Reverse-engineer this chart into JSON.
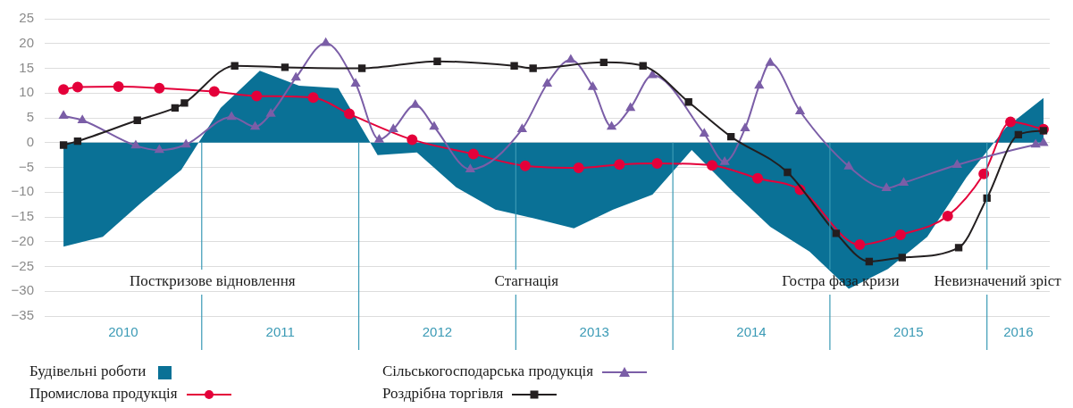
{
  "chart_data": {
    "type": "line",
    "xlim": [
      2010,
      2016.4
    ],
    "xticks": [
      {
        "value": 2010.5,
        "label": "2010"
      },
      {
        "value": 2011.5,
        "label": "2011"
      },
      {
        "value": 2012.5,
        "label": "2012"
      },
      {
        "value": 2013.5,
        "label": "2013"
      },
      {
        "value": 2014.5,
        "label": "2014"
      },
      {
        "value": 2015.5,
        "label": "2015"
      },
      {
        "value": 2016.2,
        "label": "2016"
      }
    ],
    "ylim": [
      -35,
      25
    ],
    "yticks": [
      -35,
      -30,
      -25,
      -20,
      -15,
      -10,
      -5,
      0,
      5,
      10,
      15,
      20,
      25
    ],
    "grid": "y",
    "legend": "bottom",
    "ref_lines": [
      {
        "axis": "x",
        "value": 2011,
        "label": "Посткризове відновлення",
        "color": "#3a9ab5"
      },
      {
        "axis": "x",
        "value": 2012,
        "label": null,
        "color": "#3a9ab5"
      },
      {
        "axis": "x",
        "value": 2013,
        "label": "Стагнація",
        "color": "#3a9ab5"
      },
      {
        "axis": "x",
        "value": 2014,
        "label": null,
        "color": "#3a9ab5"
      },
      {
        "axis": "x",
        "value": 2015,
        "label": "Гостра фаза кризи",
        "color": "#3a9ab5"
      },
      {
        "axis": "x",
        "value": 2016,
        "label": "Невизначений зріст",
        "color": "#3a9ab5"
      }
    ],
    "series": [
      {
        "name": "Будівельні роботи",
        "type": "area",
        "color": "#0a7196",
        "marker": "none",
        "x": [
          2010.12,
          2010.37,
          2010.62,
          2010.87,
          2011.12,
          2011.37,
          2011.62,
          2011.87,
          2012.12,
          2012.37,
          2012.62,
          2012.87,
          2013.12,
          2013.37,
          2013.62,
          2013.87,
          2014.12,
          2014.37,
          2014.62,
          2014.87,
          2015.12,
          2015.37,
          2015.62,
          2015.87,
          2016.12,
          2016.36
        ],
        "values": [
          -21,
          -19,
          -12,
          -5.5,
          7,
          14.5,
          11.5,
          11,
          -2.5,
          -2,
          -9,
          -13.5,
          -15.3,
          -17.3,
          -13.5,
          -10.5,
          -1.5,
          -9.5,
          -17,
          -22,
          -29.5,
          -25.5,
          -19,
          -7,
          3,
          9
        ]
      },
      {
        "name": "Промислова продукція",
        "color": "#e4003a",
        "marker": "circle",
        "x": [
          2010.12,
          2010.21,
          2010.47,
          2010.73,
          2011.08,
          2011.35,
          2011.71,
          2011.94,
          2012.34,
          2012.73,
          2013.06,
          2013.4,
          2013.66,
          2013.9,
          2014.25,
          2014.54,
          2014.81,
          2015.19,
          2015.45,
          2015.75,
          2015.98,
          2016.15,
          2016.36
        ],
        "values": [
          10.7,
          11.2,
          11.3,
          11,
          10.3,
          9.4,
          9.1,
          5.8,
          0.6,
          -2.3,
          -4.7,
          -5.1,
          -4.4,
          -4.2,
          -4.6,
          -7.2,
          -9.5,
          -20.6,
          -18.6,
          -14.8,
          -6.3,
          4.2,
          2.7
        ]
      },
      {
        "name": "Сільськогосподарська продукція",
        "color": "#7b5ea7",
        "marker": "triangle",
        "x": [
          2010.12,
          2010.24,
          2010.58,
          2010.73,
          2010.9,
          2011.19,
          2011.34,
          2011.44,
          2011.6,
          2011.79,
          2011.98,
          2012.13,
          2012.22,
          2012.36,
          2012.48,
          2012.71,
          2013.04,
          2013.2,
          2013.35,
          2013.49,
          2013.61,
          2013.73,
          2013.87,
          2014.2,
          2014.33,
          2014.46,
          2014.55,
          2014.62,
          2014.81,
          2015.12,
          2015.36,
          2015.47,
          2015.81,
          2016.31,
          2016.36
        ],
        "values": [
          5.4,
          4.5,
          -0.6,
          -1.5,
          -0.4,
          5.2,
          3.2,
          5.8,
          13.1,
          20.1,
          11.9,
          0.6,
          2.7,
          7.6,
          3.2,
          -5.4,
          2.7,
          11.9,
          16.7,
          11.2,
          3.2,
          7,
          13.6,
          1.8,
          -3.9,
          2.9,
          11.5,
          16.1,
          6.3,
          -4.8,
          -9.2,
          -8.1,
          -4.5,
          -0.4,
          -0.1
        ]
      },
      {
        "name": "Роздрібна торгівля",
        "color": "#231f20",
        "marker": "square",
        "x": [
          2010.12,
          2010.21,
          2010.59,
          2010.83,
          2010.89,
          2011.21,
          2011.53,
          2012.02,
          2012.5,
          2012.99,
          2013.11,
          2013.56,
          2013.81,
          2014.1,
          2014.37,
          2014.73,
          2015.04,
          2015.25,
          2015.46,
          2015.82,
          2016,
          2016.2,
          2016.36
        ],
        "values": [
          -0.5,
          0.3,
          4.5,
          7,
          8,
          15.5,
          15.2,
          15,
          16.4,
          15.5,
          15,
          16.2,
          15.5,
          8.2,
          1.2,
          -6,
          -18.3,
          -24,
          -23.2,
          -21.2,
          -11.2,
          1.6,
          2.4
        ]
      }
    ]
  }
}
